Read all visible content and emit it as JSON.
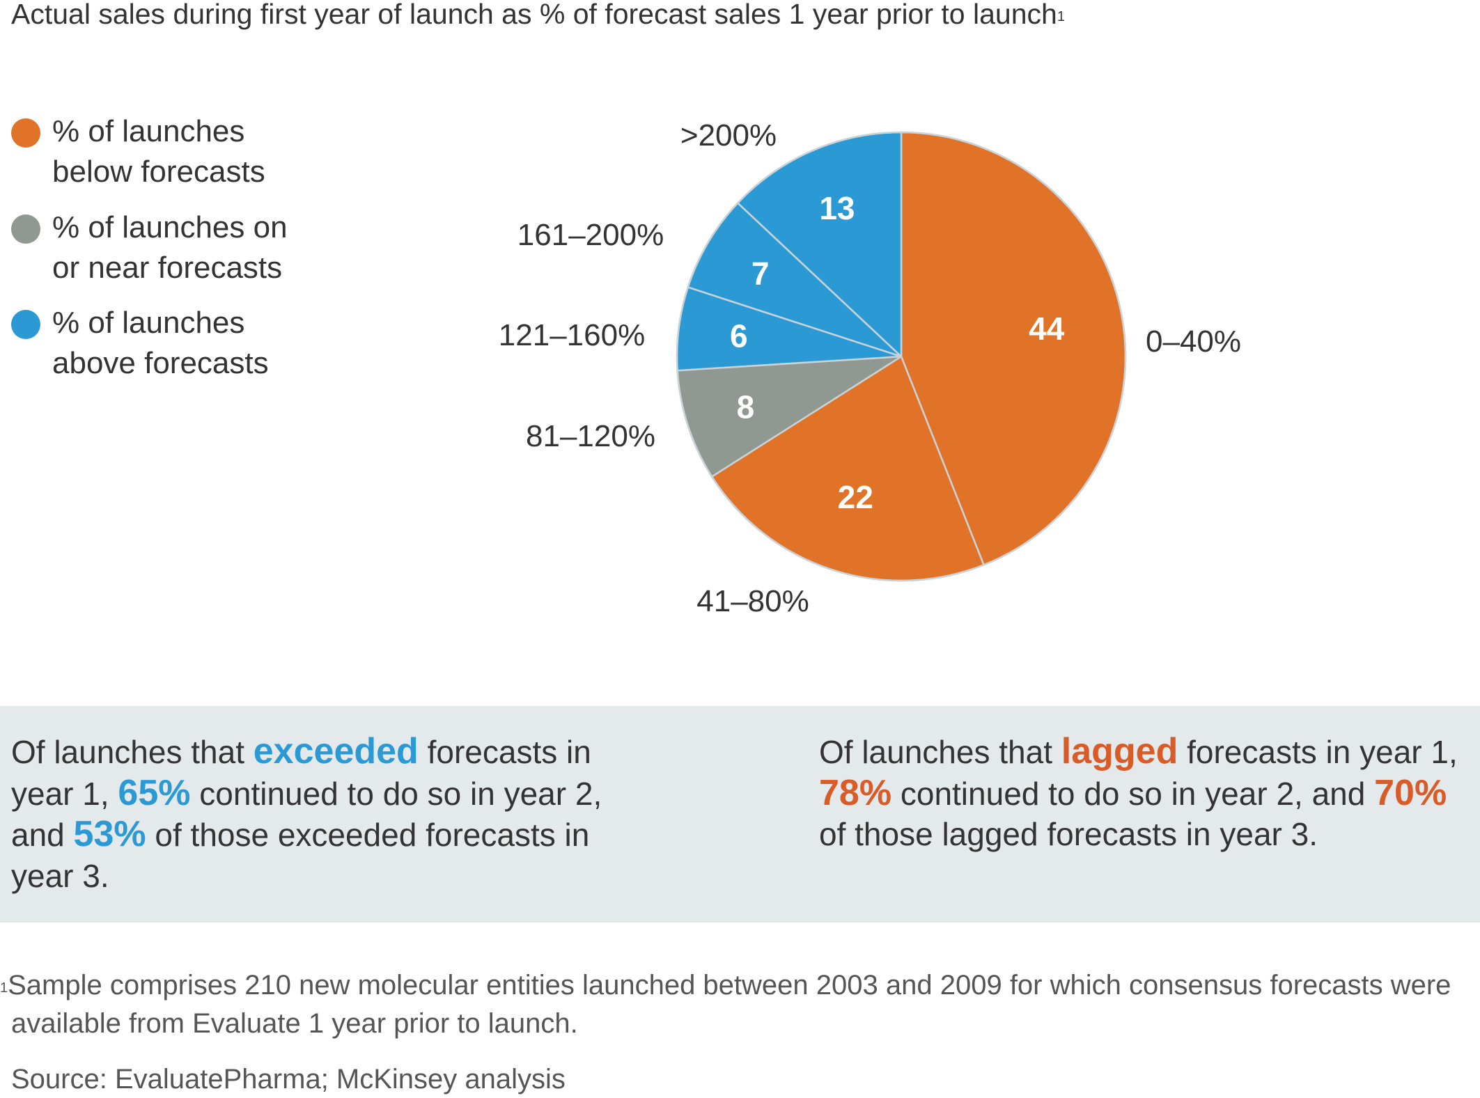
{
  "title": {
    "text": "Actual sales during first year of launch as % of forecast sales 1 year prior to launch",
    "footnote_marker": "1"
  },
  "legend": [
    {
      "line1": "% of launches",
      "line2": "below forecasts",
      "color": "#E07327"
    },
    {
      "line1": "% of launches on",
      "line2": "or near forecasts",
      "color": "#909892"
    },
    {
      "line1": "% of launches",
      "line2": "above forecasts",
      "color": "#2B9AD4"
    }
  ],
  "chart_data": {
    "type": "pie",
    "title": "Actual sales during first year of launch as % of forecast sales 1 year prior to launch",
    "start": "12 o'clock",
    "direction": "clockwise",
    "slices": [
      {
        "label": "0–40%",
        "value": 44,
        "group": "below forecasts",
        "color": "#E07327"
      },
      {
        "label": "41–80%",
        "value": 22,
        "group": "below forecasts",
        "color": "#E07327"
      },
      {
        "label": "81–120%",
        "value": 8,
        "group": "on or near forecasts",
        "color": "#909892"
      },
      {
        "label": "121–160%",
        "value": 6,
        "group": "above forecasts",
        "color": "#2B9AD4"
      },
      {
        "label": "161–200%",
        "value": 7,
        "group": "above forecasts",
        "color": "#2B9AD4"
      },
      {
        "label": ">200%",
        "value": 13,
        "group": "above forecasts",
        "color": "#2B9AD4"
      }
    ],
    "unit": "% of launches",
    "legend_position": "left"
  },
  "callouts": {
    "left": {
      "t1": "Of launches that ",
      "h1": "exceeded",
      "t2": " forecasts in year 1, ",
      "h2": "65%",
      "t3": " continued to do so in year 2, and ",
      "h3": "53%",
      "t4": " of those exceeded forecasts in year 3."
    },
    "right": {
      "t1": "Of launches that ",
      "h1": "lagged",
      "t2": " forecasts in year 1, ",
      "h2": "78%",
      "t3": " continued to do so in year 2, and ",
      "h3": "70%",
      "t4": " of those lagged forecasts in year 3."
    }
  },
  "footnote": {
    "marker": "1",
    "text": "Sample comprises 210 new molecular entities launched between 2003 and 2009 for which consensus forecasts were available from Evaluate 1 year prior to launch."
  },
  "source": "Source: EvaluatePharma; McKinsey analysis",
  "colors": {
    "below": "#E07327",
    "near": "#909892",
    "above": "#2B9AD4",
    "callout_bg": "#E4E9EB",
    "highlight_orange": "#D95B27",
    "text": "#333333"
  }
}
